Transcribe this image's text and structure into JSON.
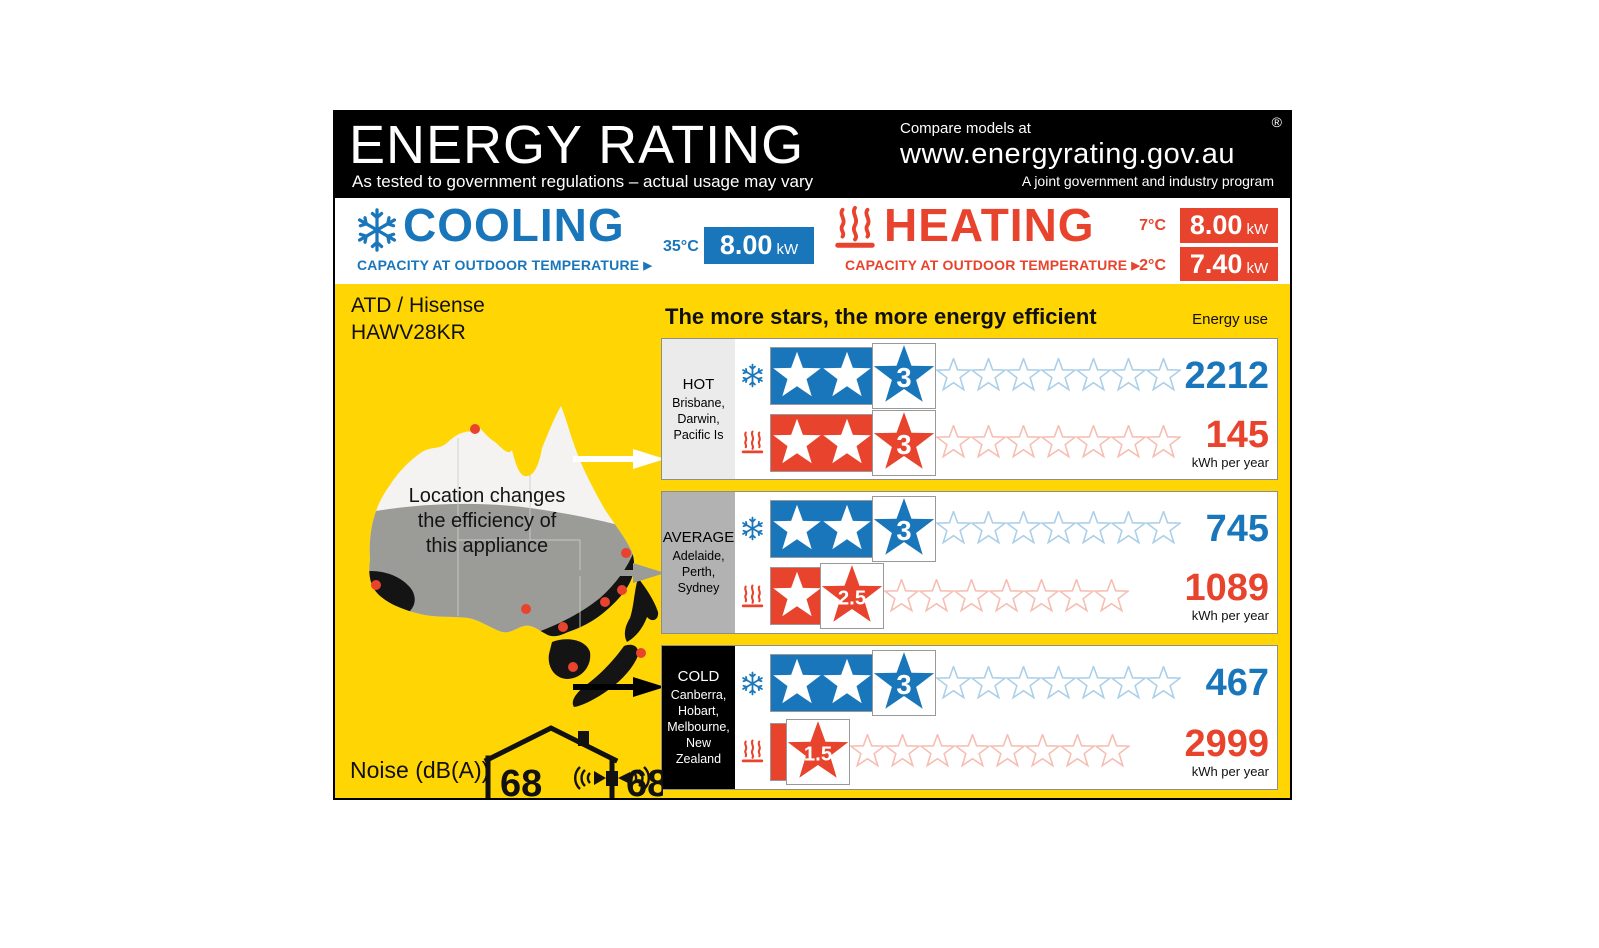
{
  "header": {
    "title": "ENERGY RATING",
    "subtitle": "As tested to government regulations – actual usage may vary",
    "compare_label": "Compare models at",
    "website": "www.energyrating.gov.au",
    "trademark": "®",
    "program_label": "A joint government and industry program"
  },
  "cooling": {
    "title": "COOLING",
    "capacity_label": "CAPACITY AT OUTDOOR TEMPERATURE",
    "arrow": "▶",
    "temperature": "35°C",
    "capacity_value": "8.00",
    "capacity_unit": "kW"
  },
  "heating": {
    "title": "HEATING",
    "capacity_label": "CAPACITY AT OUTDOOR TEMPERATURE",
    "arrow": "▶",
    "capacities": [
      {
        "temperature": "7°C",
        "value": "8.00",
        "unit": "kW"
      },
      {
        "temperature": "2°C",
        "value": "7.40",
        "unit": "kW"
      }
    ]
  },
  "model": {
    "brand": "ATD / Hisense",
    "number": "HAWV28KR"
  },
  "main": {
    "stars_heading": "The more stars, the more energy efficient",
    "energy_use_label": "Energy use",
    "kwh_label": "kWh per year",
    "map_caption": "Location changes\nthe efficiency of\nthis appliance"
  },
  "zones": [
    {
      "name": "HOT",
      "cities": [
        "Brisbane,",
        "Darwin,",
        "Pacific Is"
      ],
      "label_bg": "#ebebeb",
      "label_fg": "#000000",
      "cooling": {
        "stars": 3,
        "energy": "2212"
      },
      "heating": {
        "stars": 3,
        "energy": "145"
      }
    },
    {
      "name": "AVERAGE",
      "cities": [
        "Adelaide,",
        "Perth,",
        "Sydney"
      ],
      "label_bg": "#b2b2b2",
      "label_fg": "#000000",
      "cooling": {
        "stars": 3,
        "energy": "745"
      },
      "heating": {
        "stars": 2.5,
        "energy": "1089"
      }
    },
    {
      "name": "COLD",
      "cities": [
        "Canberra,",
        "Hobart,",
        "Melbourne,",
        "New Zealand"
      ],
      "label_bg": "#000000",
      "label_fg": "#ffffff",
      "cooling": {
        "stars": 3,
        "energy": "467"
      },
      "heating": {
        "stars": 1.5,
        "energy": "2999"
      }
    }
  ],
  "noise": {
    "label": "Noise (dB(A))",
    "indoor": "68",
    "outdoor": "68"
  },
  "colors": {
    "cooling_blue": "#1a76bb",
    "heating_red": "#e8432d",
    "label_yellow": "#ffd503",
    "cooling_star_outline": "#abcfe9",
    "heating_star_outline": "#f6beb2"
  }
}
